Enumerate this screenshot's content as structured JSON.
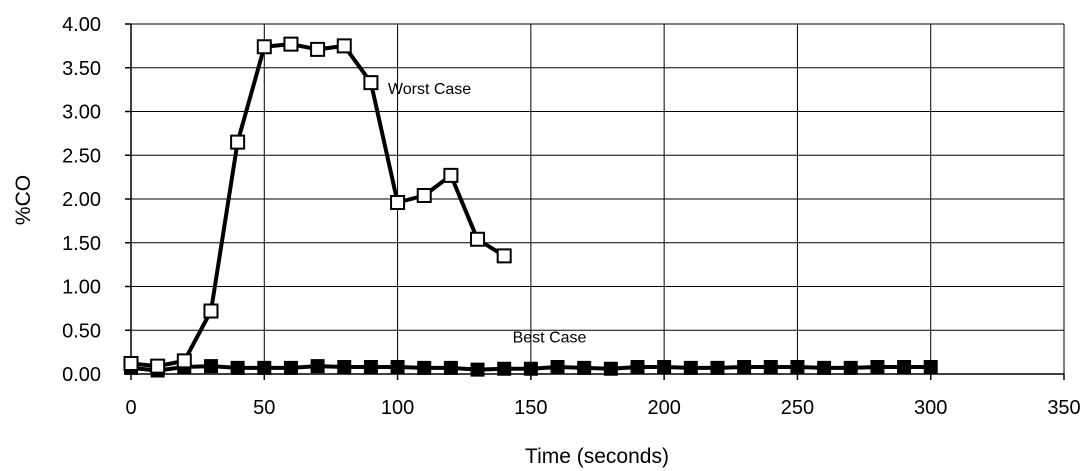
{
  "chart_data": {
    "type": "line",
    "xlabel": "Time (seconds)",
    "ylabel": "%CO",
    "xlim": [
      0,
      350
    ],
    "ylim": [
      0,
      4
    ],
    "x_ticks": [
      0,
      50,
      100,
      150,
      200,
      250,
      300,
      350
    ],
    "y_ticks": [
      0,
      0.5,
      1,
      1.5,
      2,
      2.5,
      3,
      3.5,
      4
    ],
    "x_tick_labels": [
      "0",
      "50",
      "100",
      "150",
      "200",
      "250",
      "300",
      "350"
    ],
    "y_tick_labels": [
      "0.00",
      "0.50",
      "1.00",
      "1.50",
      "2.00",
      "2.50",
      "3.00",
      "3.50",
      "4.00"
    ],
    "grid": true,
    "series": [
      {
        "key": "worst",
        "marker": "open-square",
        "x": [
          0,
          10,
          20,
          30,
          40,
          50,
          60,
          70,
          80,
          90,
          100,
          110,
          120,
          130,
          140
        ],
        "y": [
          0.12,
          0.09,
          0.15,
          0.72,
          2.65,
          3.74,
          3.77,
          3.71,
          3.75,
          3.33,
          1.96,
          2.04,
          2.27,
          1.54,
          1.35
        ]
      },
      {
        "key": "best",
        "marker": "filled-square",
        "x": [
          0,
          10,
          20,
          30,
          40,
          50,
          60,
          70,
          80,
          90,
          100,
          110,
          120,
          130,
          140,
          150,
          160,
          170,
          180,
          190,
          200,
          210,
          220,
          230,
          240,
          250,
          260,
          270,
          280,
          290,
          300
        ],
        "y": [
          0.07,
          0.04,
          0.08,
          0.09,
          0.07,
          0.07,
          0.07,
          0.09,
          0.08,
          0.08,
          0.08,
          0.07,
          0.07,
          0.05,
          0.06,
          0.06,
          0.08,
          0.07,
          0.06,
          0.08,
          0.08,
          0.07,
          0.07,
          0.08,
          0.08,
          0.08,
          0.07,
          0.07,
          0.08,
          0.08,
          0.08
        ]
      }
    ],
    "annotations": [
      {
        "text": "Worst Case",
        "x": 112,
        "y": 3.2
      },
      {
        "text": "Best Case",
        "x": 157,
        "y": 0.36
      }
    ]
  }
}
